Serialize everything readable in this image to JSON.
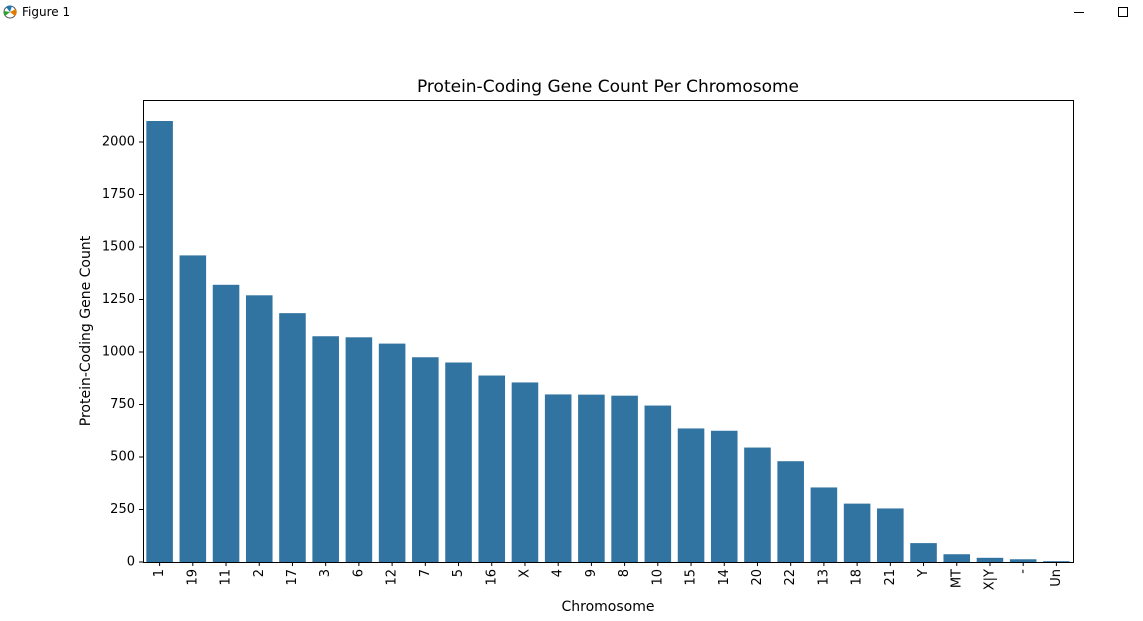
{
  "window": {
    "title": "Figure 1",
    "icon": "matplotlib-icon",
    "controls": [
      "minimize-icon",
      "maximize-icon"
    ]
  },
  "chart_data": {
    "type": "bar",
    "title": "Protein-Coding Gene Count Per Chromosome",
    "xlabel": "Chromosome",
    "ylabel": "Protein-Coding Gene Count",
    "categories": [
      "1",
      "19",
      "11",
      "2",
      "17",
      "3",
      "6",
      "12",
      "7",
      "5",
      "16",
      "X",
      "4",
      "9",
      "8",
      "10",
      "15",
      "14",
      "20",
      "22",
      "13",
      "18",
      "21",
      "Y",
      "MT",
      "X|Y",
      "-",
      "Un"
    ],
    "values": [
      2100,
      1460,
      1320,
      1270,
      1185,
      1075,
      1070,
      1040,
      975,
      950,
      888,
      855,
      798,
      797,
      792,
      745,
      636,
      625,
      545,
      480,
      355,
      278,
      255,
      90,
      37,
      20,
      13,
      4
    ],
    "ylim": [
      0,
      2200
    ],
    "yticks": [
      0,
      250,
      500,
      750,
      1000,
      1250,
      1500,
      1750,
      2000
    ],
    "bar_color": "#3274a1",
    "grid": false,
    "legend": "none"
  }
}
